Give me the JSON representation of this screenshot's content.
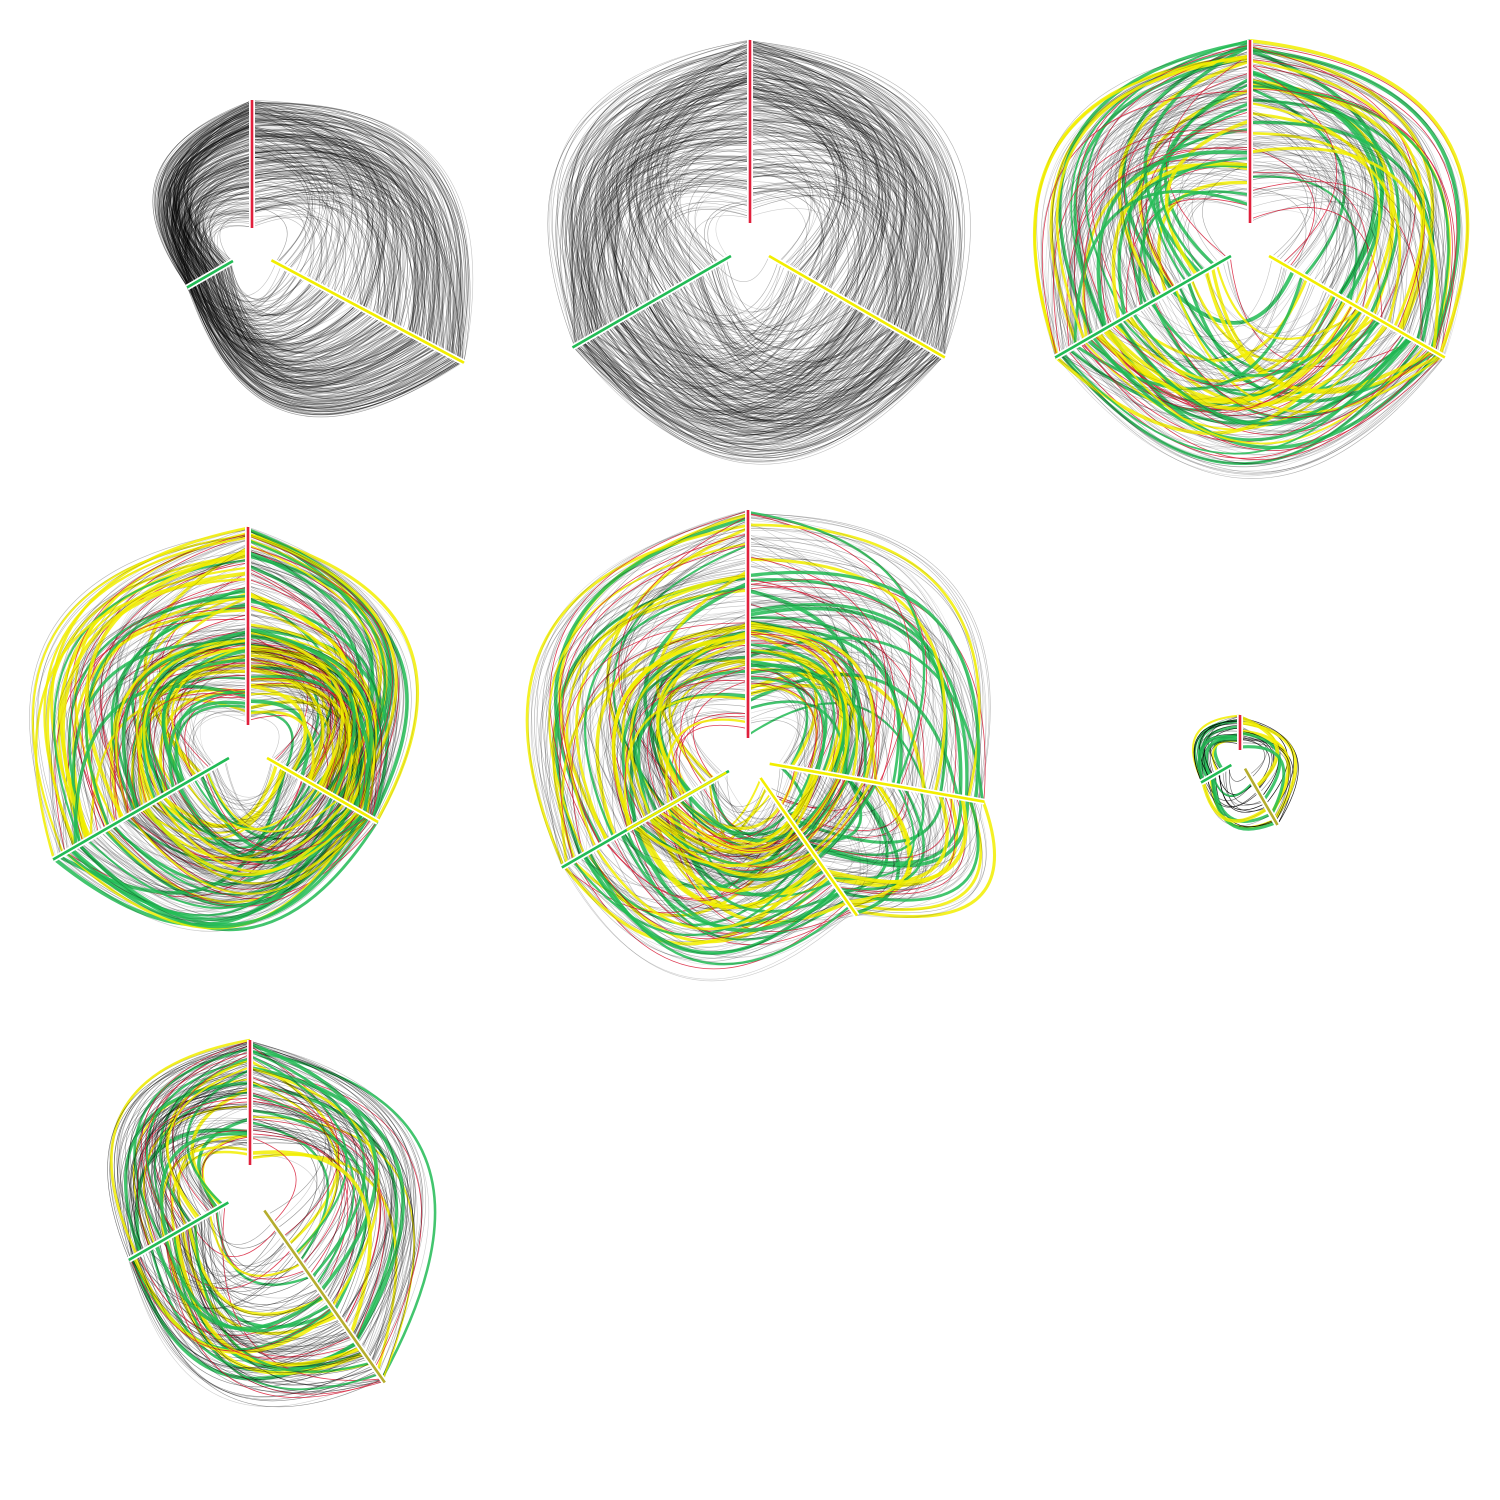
{
  "colors": {
    "background": "#ffffff",
    "edge_default": "#000000",
    "axis_red": "#e0203c",
    "axis_yellow": "#f2ee00",
    "axis_olive": "#b5ad2e",
    "axis_green": "#22bb55",
    "edge_green": "#22bb55",
    "edge_yellow": "#f2ee00",
    "edge_red": "#d81e3a"
  },
  "panels": [
    {
      "id": 1,
      "style": "dense-black",
      "axes": 3,
      "axis_colors": [
        "axis_red",
        "axis_yellow",
        "axis_green"
      ],
      "edge_colors": [
        "edge_default"
      ]
    },
    {
      "id": 2,
      "style": "dense-black",
      "axes": 3,
      "axis_colors": [
        "axis_red",
        "axis_yellow",
        "axis_green"
      ],
      "edge_colors": [
        "edge_default"
      ]
    },
    {
      "id": 3,
      "style": "highlighted",
      "axes": 3,
      "axis_colors": [
        "axis_red",
        "axis_yellow",
        "axis_green"
      ],
      "edge_colors": [
        "edge_default",
        "edge_green",
        "edge_yellow",
        "edge_red"
      ]
    },
    {
      "id": 4,
      "style": "nested-highlighted",
      "axes": 3,
      "axis_colors": [
        "axis_red",
        "axis_yellow",
        "axis_green"
      ],
      "edge_colors": [
        "edge_default",
        "edge_green",
        "edge_yellow",
        "edge_red"
      ]
    },
    {
      "id": 5,
      "style": "nested-extra-axis",
      "axes": 4,
      "axis_colors": [
        "axis_red",
        "axis_yellow",
        "axis_yellow",
        "axis_green"
      ],
      "edge_colors": [
        "edge_default",
        "edge_green",
        "edge_yellow",
        "edge_red"
      ]
    },
    {
      "id": 6,
      "style": "sparse-small",
      "axes": 3,
      "axis_colors": [
        "axis_red",
        "axis_olive",
        "axis_green"
      ],
      "edge_colors": [
        "edge_default",
        "edge_green",
        "edge_yellow"
      ]
    },
    {
      "id": 7,
      "style": "sparse-colored",
      "axes": 3,
      "axis_colors": [
        "axis_red",
        "axis_olive",
        "axis_green"
      ],
      "edge_colors": [
        "edge_default",
        "edge_green",
        "edge_yellow",
        "edge_red"
      ]
    }
  ]
}
